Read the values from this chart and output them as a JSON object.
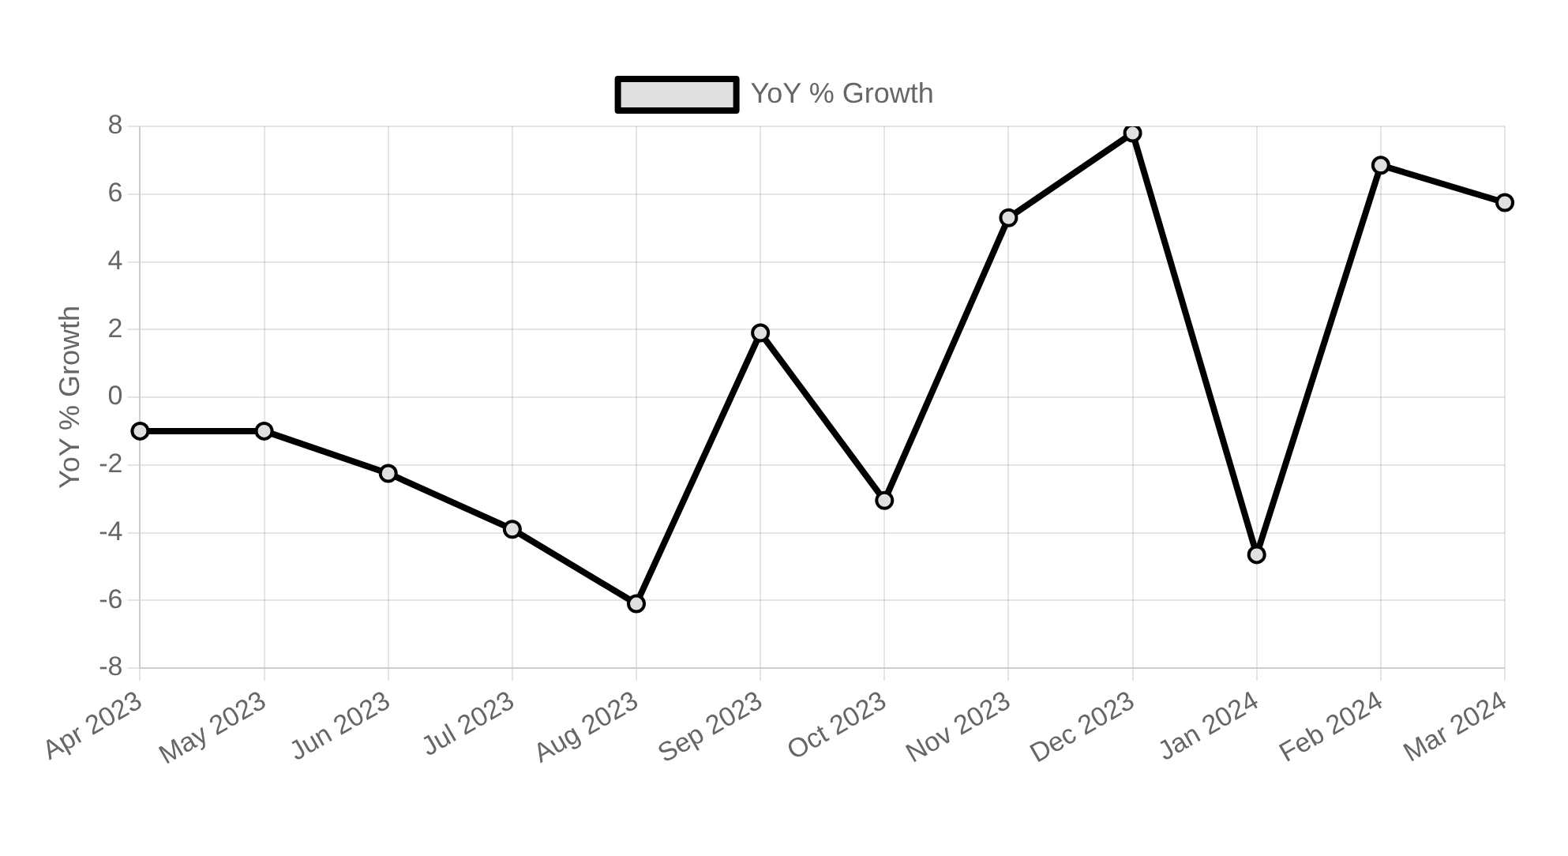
{
  "chart_data": {
    "type": "line",
    "ylabel": "YoY % Growth",
    "categories": [
      "Apr 2023",
      "May 2023",
      "Jun 2023",
      "Jul 2023",
      "Aug 2023",
      "Sep 2023",
      "Oct 2023",
      "Nov 2023",
      "Dec 2023",
      "Jan 2024",
      "Feb 2024",
      "Mar 2024"
    ],
    "series": [
      {
        "name": "YoY % Growth",
        "color": "#000000",
        "values": [
          -1.0,
          -1.0,
          -2.25,
          -3.9,
          -6.1,
          1.9,
          -3.05,
          5.3,
          7.8,
          -4.65,
          6.85,
          5.75
        ]
      }
    ],
    "ylim": [
      -8,
      8
    ],
    "yticks": [
      -8,
      -6,
      -4,
      -2,
      0,
      2,
      4,
      6,
      8
    ],
    "grid": true,
    "legend": "top",
    "marker": "circle",
    "line_style": "solid"
  }
}
